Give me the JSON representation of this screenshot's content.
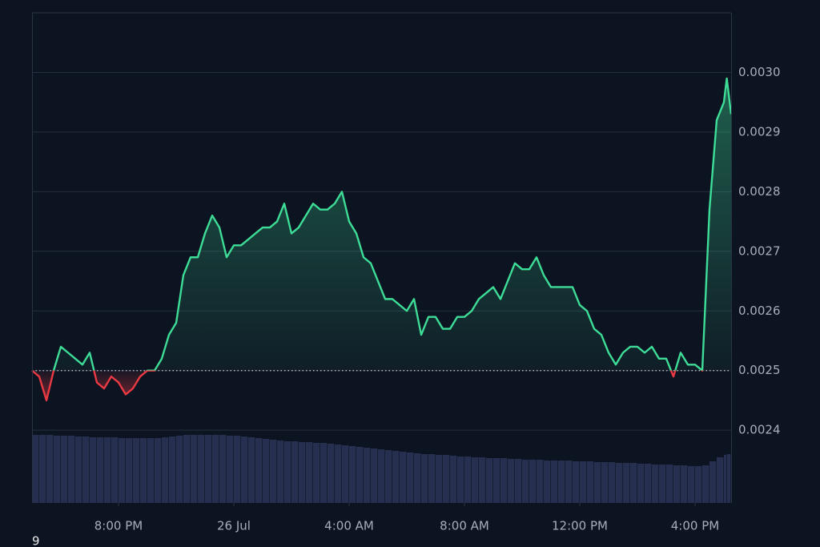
{
  "chart_data": {
    "type": "line",
    "x": [
      0,
      0.25,
      0.5,
      0.75,
      1,
      1.25,
      1.5,
      1.75,
      2,
      2.25,
      2.5,
      2.75,
      3,
      3.25,
      3.5,
      3.75,
      4,
      4.25,
      4.5,
      4.75,
      5,
      5.25,
      5.5,
      5.75,
      6,
      6.25,
      6.5,
      6.75,
      7,
      7.25,
      7.5,
      7.75,
      8,
      8.25,
      8.5,
      8.75,
      9,
      9.25,
      9.5,
      9.75,
      10,
      10.25,
      10.5,
      10.75,
      11,
      11.25,
      11.5,
      11.75,
      12,
      12.25,
      12.5,
      12.75,
      13,
      13.25,
      13.5,
      13.75,
      14,
      14.25,
      14.5,
      14.75,
      15,
      15.25,
      15.5,
      15.75,
      16,
      16.25,
      16.5,
      16.75,
      17,
      17.25,
      17.5,
      17.75,
      18,
      18.25,
      18.5,
      18.75,
      19,
      19.25,
      19.5,
      19.75,
      20,
      20.25,
      20.5,
      20.75,
      21,
      21.25,
      21.5,
      21.75,
      22,
      22.25,
      22.5,
      22.75,
      23,
      23.25,
      23.5,
      23.75,
      24,
      24.1,
      24.25
    ],
    "values": [
      0.0025,
      0.00249,
      0.00245,
      0.0025,
      0.00254,
      0.00253,
      0.00252,
      0.00251,
      0.00253,
      0.00248,
      0.00247,
      0.00249,
      0.00248,
      0.00246,
      0.00247,
      0.00249,
      0.0025,
      0.0025,
      0.00252,
      0.00256,
      0.00258,
      0.00266,
      0.00269,
      0.00269,
      0.00273,
      0.00276,
      0.00274,
      0.00269,
      0.00271,
      0.00271,
      0.00272,
      0.00273,
      0.00274,
      0.00274,
      0.00275,
      0.00278,
      0.00273,
      0.00274,
      0.00276,
      0.00278,
      0.00277,
      0.00277,
      0.00278,
      0.0028,
      0.00275,
      0.00273,
      0.00269,
      0.00268,
      0.00265,
      0.00262,
      0.00262,
      0.00261,
      0.0026,
      0.00262,
      0.00256,
      0.00259,
      0.00259,
      0.00257,
      0.00257,
      0.00259,
      0.00259,
      0.0026,
      0.00262,
      0.00263,
      0.00264,
      0.00262,
      0.00265,
      0.00268,
      0.00267,
      0.00267,
      0.00269,
      0.00266,
      0.00264,
      0.00264,
      0.00264,
      0.00264,
      0.00261,
      0.0026,
      0.00257,
      0.00256,
      0.00253,
      0.00251,
      0.00253,
      0.00254,
      0.00254,
      0.00253,
      0.00254,
      0.00252,
      0.00252,
      0.00249,
      0.00253,
      0.00251,
      0.00251,
      0.0025,
      0.00277,
      0.00292,
      0.00295,
      0.00299,
      0.00293
    ],
    "volume": [
      85,
      85,
      85,
      84,
      84,
      84,
      83,
      83,
      82,
      82,
      82,
      82,
      81,
      81,
      81,
      81,
      81,
      81,
      82,
      83,
      84,
      85,
      85,
      85,
      85,
      85,
      85,
      84,
      84,
      83,
      82,
      81,
      80,
      79,
      78,
      77,
      77,
      76,
      76,
      75,
      75,
      74,
      73,
      72,
      71,
      70,
      69,
      68,
      67,
      66,
      65,
      64,
      63,
      62,
      61,
      61,
      60,
      60,
      59,
      58,
      58,
      57,
      57,
      56,
      56,
      56,
      55,
      55,
      54,
      54,
      54,
      53,
      53,
      53,
      53,
      52,
      52,
      52,
      51,
      51,
      51,
      50,
      50,
      50,
      49,
      49,
      48,
      48,
      48,
      47,
      47,
      46,
      46,
      47,
      52,
      57,
      60,
      61,
      62
    ],
    "baseline": 0.0025,
    "up_color": "#3ddc97",
    "down_color": "#ea3943",
    "volume_color": "#262f50",
    "xlim": [
      0,
      24.25
    ],
    "xticks": [
      {
        "value": 3,
        "label": "8:00 PM"
      },
      {
        "value": 7,
        "label": "26 Jul"
      },
      {
        "value": 11,
        "label": "4:00 AM"
      },
      {
        "value": 15,
        "label": "8:00 AM"
      },
      {
        "value": 19,
        "label": "12:00 PM"
      },
      {
        "value": 23,
        "label": "4:00 PM"
      }
    ],
    "ylim": [
      0.002278,
      0.0031
    ],
    "yticks": [
      0.0024,
      0.0025,
      0.0026,
      0.0027,
      0.0028,
      0.0029,
      {
        "value": 0.003,
        "label": "0.0030"
      }
    ],
    "y2lim": [
      0,
      100
    ],
    "grid": true,
    "footnote": "9"
  }
}
